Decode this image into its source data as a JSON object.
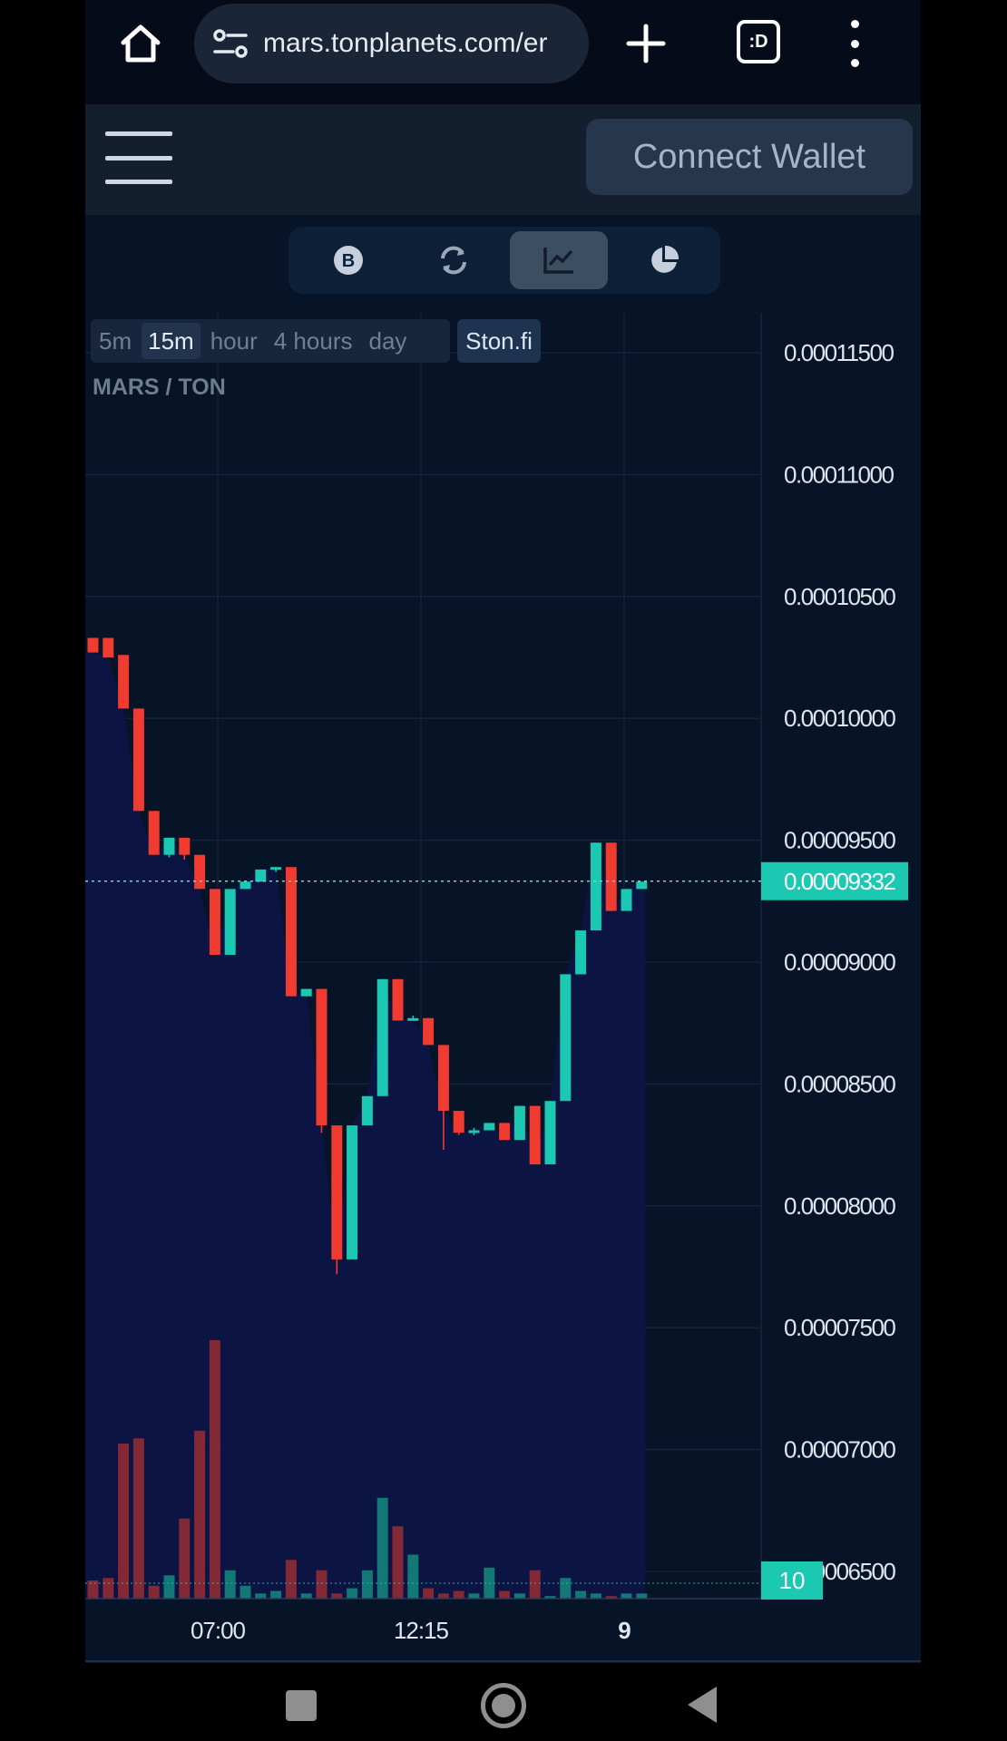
{
  "browser": {
    "url": "mars.tonplanets.com/er"
  },
  "header": {
    "connect_label": "Connect Wallet"
  },
  "view_tabs": [
    {
      "icon": "bitcoin-icon",
      "active": false
    },
    {
      "icon": "swap-refresh-icon",
      "active": false
    },
    {
      "icon": "line-chart-icon",
      "active": true
    },
    {
      "icon": "pie-chart-icon",
      "active": false
    }
  ],
  "time_filters": [
    {
      "label": "5m",
      "active": false
    },
    {
      "label": "15m",
      "active": true
    },
    {
      "label": "hour",
      "active": false
    },
    {
      "label": "4 hours",
      "active": false
    },
    {
      "label": "day",
      "active": false
    }
  ],
  "source_label": "Ston.fi",
  "pair_label": "MARS / TON",
  "colors": {
    "up": "#1bc9b3",
    "down": "#ef3b30",
    "area": "#0c1547",
    "background": "#071326",
    "grid": "#13233a",
    "axis_text": "#dfe6f0"
  },
  "chart_data": {
    "type": "candlestick",
    "price_ticks": [
      "0.00011500",
      "0.00011000",
      "0.00010500",
      "0.00010000",
      "0.00009500",
      "0.00009000",
      "0.00008500",
      "0.00008000",
      "0.00007500",
      "0.00007000",
      "0.00006500"
    ],
    "y_range": [
      6.5e-05,
      0.000115
    ],
    "x_ticks": [
      "07:00",
      "12:15",
      "9"
    ],
    "current_price": "0.00009332",
    "current_volume_label": "10",
    "candles": [
      {
        "o": 0.0001033,
        "h": 0.0001033,
        "l": 0.0001027,
        "c": 0.0001027
      },
      {
        "o": 0.0001033,
        "h": 0.0001033,
        "l": 0.0001025,
        "c": 0.0001025
      },
      {
        "o": 0.0001026,
        "h": 0.0001026,
        "l": 0.0001004,
        "c": 0.0001004
      },
      {
        "o": 0.0001004,
        "h": 0.0001004,
        "l": 9.62e-05,
        "c": 9.62e-05
      },
      {
        "o": 9.62e-05,
        "h": 9.62e-05,
        "l": 9.44e-05,
        "c": 9.44e-05
      },
      {
        "o": 9.44e-05,
        "h": 9.51e-05,
        "l": 9.43e-05,
        "c": 9.51e-05
      },
      {
        "o": 9.51e-05,
        "h": 9.51e-05,
        "l": 9.42e-05,
        "c": 9.44e-05
      },
      {
        "o": 9.44e-05,
        "h": 9.44e-05,
        "l": 9.3e-05,
        "c": 9.3e-05
      },
      {
        "o": 9.3e-05,
        "h": 9.3e-05,
        "l": 9.03e-05,
        "c": 9.03e-05
      },
      {
        "o": 9.03e-05,
        "h": 9.3e-05,
        "l": 9.03e-05,
        "c": 9.3e-05
      },
      {
        "o": 9.3e-05,
        "h": 9.33e-05,
        "l": 9.3e-05,
        "c": 9.33e-05
      },
      {
        "o": 9.33e-05,
        "h": 9.38e-05,
        "l": 9.33e-05,
        "c": 9.38e-05
      },
      {
        "o": 9.38e-05,
        "h": 9.39e-05,
        "l": 9.37e-05,
        "c": 9.39e-05
      },
      {
        "o": 9.39e-05,
        "h": 9.39e-05,
        "l": 8.86e-05,
        "c": 8.86e-05
      },
      {
        "o": 8.86e-05,
        "h": 8.89e-05,
        "l": 8.86e-05,
        "c": 8.89e-05
      },
      {
        "o": 8.89e-05,
        "h": 8.89e-05,
        "l": 8.3e-05,
        "c": 8.33e-05
      },
      {
        "o": 8.33e-05,
        "h": 8.33e-05,
        "l": 7.72e-05,
        "c": 7.78e-05
      },
      {
        "o": 7.78e-05,
        "h": 8.33e-05,
        "l": 7.78e-05,
        "c": 8.33e-05
      },
      {
        "o": 8.33e-05,
        "h": 8.45e-05,
        "l": 8.33e-05,
        "c": 8.45e-05
      },
      {
        "o": 8.45e-05,
        "h": 8.93e-05,
        "l": 8.45e-05,
        "c": 8.93e-05
      },
      {
        "o": 8.93e-05,
        "h": 8.93e-05,
        "l": 8.76e-05,
        "c": 8.76e-05
      },
      {
        "o": 8.76e-05,
        "h": 8.78e-05,
        "l": 8.76e-05,
        "c": 8.77e-05
      },
      {
        "o": 8.77e-05,
        "h": 8.77e-05,
        "l": 8.66e-05,
        "c": 8.66e-05
      },
      {
        "o": 8.66e-05,
        "h": 8.66e-05,
        "l": 8.23e-05,
        "c": 8.39e-05
      },
      {
        "o": 8.39e-05,
        "h": 8.39e-05,
        "l": 8.29e-05,
        "c": 8.3e-05
      },
      {
        "o": 8.3e-05,
        "h": 8.32e-05,
        "l": 8.29e-05,
        "c": 8.31e-05
      },
      {
        "o": 8.31e-05,
        "h": 8.34e-05,
        "l": 8.31e-05,
        "c": 8.34e-05
      },
      {
        "o": 8.34e-05,
        "h": 8.34e-05,
        "l": 8.27e-05,
        "c": 8.27e-05
      },
      {
        "o": 8.27e-05,
        "h": 8.41e-05,
        "l": 8.27e-05,
        "c": 8.41e-05
      },
      {
        "o": 8.41e-05,
        "h": 8.41e-05,
        "l": 8.17e-05,
        "c": 8.17e-05
      },
      {
        "o": 8.17e-05,
        "h": 8.43e-05,
        "l": 8.17e-05,
        "c": 8.43e-05
      },
      {
        "o": 8.43e-05,
        "h": 8.95e-05,
        "l": 8.43e-05,
        "c": 8.95e-05
      },
      {
        "o": 8.95e-05,
        "h": 9.13e-05,
        "l": 8.95e-05,
        "c": 9.13e-05
      },
      {
        "o": 9.13e-05,
        "h": 9.49e-05,
        "l": 9.13e-05,
        "c": 9.49e-05
      },
      {
        "o": 9.49e-05,
        "h": 9.49e-05,
        "l": 9.21e-05,
        "c": 9.21e-05
      },
      {
        "o": 9.21e-05,
        "h": 9.3e-05,
        "l": 9.21e-05,
        "c": 9.3e-05
      },
      {
        "o": 9.3e-05,
        "h": 9.33e-05,
        "l": 9.3e-05,
        "c": 9.33e-05
      }
    ],
    "volumes": [
      7,
      8,
      60,
      62,
      5,
      9,
      31,
      65,
      100,
      11,
      5,
      2,
      3,
      15,
      2,
      11,
      2,
      4,
      11,
      39,
      28,
      17,
      4,
      2,
      3,
      2,
      12,
      3,
      2,
      11,
      1,
      8,
      3,
      2,
      1,
      2,
      2
    ]
  }
}
